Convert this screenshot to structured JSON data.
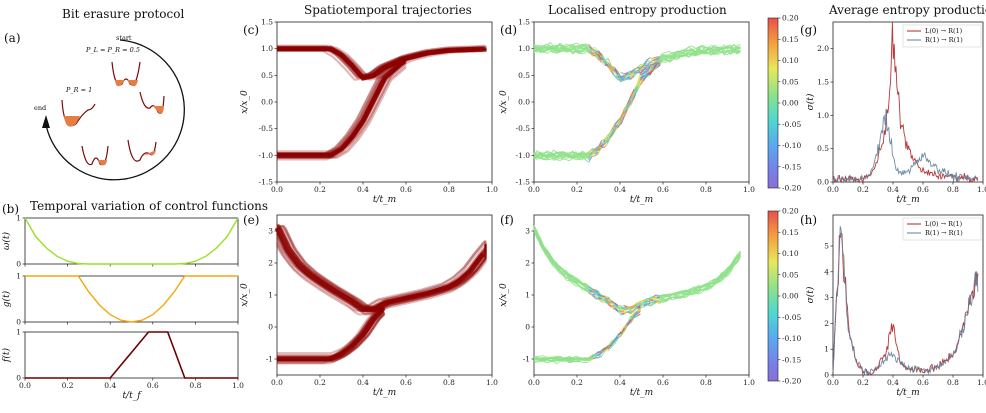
{
  "titles": {
    "a": "Bit erasure protocol",
    "b": "Temporal variation of control functions",
    "c": "Spatiotemporal trajectories",
    "d": "Localised entropy production",
    "g": "Average entropy production"
  },
  "panel_labels": [
    "(a)",
    "(b)",
    "(c)",
    "(d)",
    "(e)",
    "(f)",
    "(g)",
    "(h)"
  ],
  "protocol": {
    "start": "start",
    "start_prob": "P_L = P_R = 0.5",
    "end": "end",
    "end_prob": "P_R = 1"
  },
  "axis_labels": {
    "x_tf": "t/t_f",
    "x_tm": "t/t_m",
    "y_x": "x/x_0",
    "y_omega": "ω(t)",
    "y_g": "g(t)",
    "y_f": "f(t)",
    "y_sigma": "σ(t)"
  },
  "colors": {
    "omega": "#9be024",
    "g": "#f5a70c",
    "f": "#6b0000",
    "traj": "#8b0000",
    "red": "#b02121",
    "blue": "#5f7f9a"
  },
  "chart_data": [
    {
      "id": "b-omega",
      "type": "line",
      "title": "Temporal variation of control functions",
      "xlabel": "t/t_f",
      "ylabel": "ω(t)",
      "xlim": [
        0,
        1
      ],
      "ylim": [
        0,
        1
      ],
      "xticks": [
        "0.0",
        "0.2",
        "0.4",
        "0.6",
        "0.8",
        "1.0"
      ],
      "yticks": [
        "0",
        "1"
      ],
      "x": [
        0,
        0.05,
        0.1,
        0.15,
        0.2,
        0.25,
        0.3,
        0.7,
        0.75,
        0.8,
        0.85,
        0.9,
        0.95,
        1.0
      ],
      "y": [
        1,
        0.6,
        0.35,
        0.17,
        0.06,
        0.01,
        0,
        0,
        0.01,
        0.06,
        0.17,
        0.35,
        0.6,
        1
      ]
    },
    {
      "id": "b-g",
      "type": "line",
      "xlabel": "t/t_f",
      "ylabel": "g(t)",
      "xlim": [
        0,
        1
      ],
      "ylim": [
        0,
        1
      ],
      "xticks": [
        "0.0",
        "0.2",
        "0.4",
        "0.6",
        "0.8",
        "1.0"
      ],
      "yticks": [
        "0",
        "1"
      ],
      "x": [
        0,
        0.25,
        0.3,
        0.35,
        0.4,
        0.45,
        0.5,
        0.55,
        0.6,
        0.65,
        0.7,
        0.75,
        1.0
      ],
      "y": [
        1,
        1,
        0.65,
        0.37,
        0.16,
        0.04,
        0,
        0.04,
        0.16,
        0.37,
        0.65,
        1,
        1
      ]
    },
    {
      "id": "b-f",
      "type": "line",
      "xlabel": "t/t_f",
      "ylabel": "f(t)",
      "xlim": [
        0,
        1
      ],
      "ylim": [
        0,
        1
      ],
      "xticks": [
        "0.0",
        "0.2",
        "0.4",
        "0.6",
        "0.8",
        "1.0"
      ],
      "yticks": [
        "0",
        "1"
      ],
      "x": [
        0,
        0.4,
        0.58,
        0.67,
        0.75,
        1.0
      ],
      "y": [
        0,
        0,
        1,
        1,
        0,
        0
      ]
    },
    {
      "id": "c",
      "type": "line",
      "title": "Spatiotemporal trajectories",
      "xlabel": "t/t_m",
      "ylabel": "x/x_0",
      "xlim": [
        0,
        1
      ],
      "ylim": [
        -1.5,
        1.5
      ],
      "xticks": [
        "0.0",
        "0.2",
        "0.4",
        "0.6",
        "0.8",
        "1.0"
      ],
      "yticks": [
        "-1.5",
        "-1.0",
        "-0.5",
        "0.0",
        "0.5",
        "1.0",
        "1.5"
      ],
      "series": [
        {
          "name": "upper",
          "x": [
            0,
            0.25,
            0.3,
            0.35,
            0.4,
            0.45,
            0.5,
            0.6,
            0.7,
            0.8,
            1.0
          ],
          "y": [
            1.0,
            1.0,
            0.88,
            0.68,
            0.45,
            0.5,
            0.65,
            0.82,
            0.92,
            0.97,
            1.0
          ]
        },
        {
          "name": "lower",
          "x": [
            0,
            0.25,
            0.3,
            0.35,
            0.4,
            0.45,
            0.5,
            0.6
          ],
          "y": [
            -1.0,
            -1.0,
            -0.88,
            -0.65,
            -0.35,
            0.05,
            0.45,
            0.8
          ]
        }
      ]
    },
    {
      "id": "e",
      "type": "line",
      "xlabel": "t/t_m",
      "ylabel": "x/x_0",
      "xlim": [
        0,
        1
      ],
      "ylim": [
        -1.5,
        3.5
      ],
      "xticks": [
        "0.0",
        "0.2",
        "0.4",
        "0.6",
        "0.8",
        "1.0"
      ],
      "yticks": [
        "-1",
        "0",
        "1",
        "2",
        "3"
      ],
      "series": [
        {
          "name": "upper",
          "x": [
            0,
            0.05,
            0.1,
            0.15,
            0.2,
            0.25,
            0.3,
            0.35,
            0.4,
            0.45,
            0.5,
            0.6,
            0.7,
            0.8,
            0.85,
            0.9,
            0.95,
            1.0
          ],
          "y": [
            3.1,
            2.4,
            1.95,
            1.65,
            1.42,
            1.2,
            1.0,
            0.8,
            0.55,
            0.55,
            0.75,
            0.9,
            1.05,
            1.25,
            1.45,
            1.75,
            2.2,
            2.6
          ]
        },
        {
          "name": "lower",
          "x": [
            0,
            0.25,
            0.3,
            0.35,
            0.4,
            0.45,
            0.5
          ],
          "y": [
            -1.0,
            -1.0,
            -0.85,
            -0.6,
            -0.25,
            0.25,
            0.6
          ]
        }
      ]
    },
    {
      "id": "d",
      "type": "line",
      "title": "Localised entropy production",
      "xlabel": "t/t_m",
      "ylabel": "x/x_0",
      "xlim": [
        0,
        1
      ],
      "ylim": [
        -1.5,
        1.5
      ],
      "xticks": [
        "0.0",
        "0.2",
        "0.4",
        "0.6",
        "0.8",
        "1.0"
      ],
      "yticks": [
        "-1.5",
        "-1.0",
        "-0.5",
        "0.0",
        "0.5",
        "1.0",
        "1.5"
      ],
      "colorbar": {
        "min": -0.2,
        "max": 0.2,
        "ticks": [
          "0.20",
          "0.15",
          "0.10",
          "0.05",
          "0.00",
          "-0.05",
          "-0.10",
          "-0.15",
          "-0.20"
        ]
      }
    },
    {
      "id": "f",
      "type": "line",
      "xlabel": "t/t_m",
      "ylabel": "x/x_0",
      "xlim": [
        0,
        1
      ],
      "ylim": [
        -1.5,
        3.5
      ],
      "xticks": [
        "0.0",
        "0.2",
        "0.4",
        "0.6",
        "0.8",
        "1.0"
      ],
      "yticks": [
        "-1",
        "0",
        "1",
        "2",
        "3"
      ],
      "colorbar": {
        "min": -0.2,
        "max": 0.2,
        "ticks": [
          "0.20",
          "0.15",
          "0.10",
          "0.05",
          "0.00",
          "-0.05",
          "-0.10",
          "-0.15",
          "-0.20"
        ]
      }
    },
    {
      "id": "g",
      "type": "line",
      "title": "Average entropy production",
      "xlabel": "t/t_m",
      "ylabel": "σ(t)",
      "xlim": [
        0,
        1
      ],
      "ylim": [
        0,
        2.4
      ],
      "xticks": [
        "0.0",
        "0.2",
        "0.4",
        "0.6",
        "0.8",
        "1.0"
      ],
      "yticks": [
        "0.0",
        "0.5",
        "1.0",
        "1.5",
        "2.0"
      ],
      "legend": [
        "L(0) → R(1)",
        "R(1) → R(1)"
      ],
      "series": [
        {
          "name": "L(0) → R(1)",
          "x": [
            0,
            0.1,
            0.2,
            0.25,
            0.3,
            0.35,
            0.38,
            0.4,
            0.42,
            0.45,
            0.5,
            0.55,
            0.6,
            0.7,
            0.8,
            0.9,
            1.0
          ],
          "y": [
            0.05,
            0.04,
            0.05,
            0.1,
            0.35,
            0.8,
            1.4,
            2.3,
            1.6,
            0.9,
            0.5,
            0.3,
            0.15,
            0.1,
            0.08,
            0.05,
            0.03
          ]
        },
        {
          "name": "R(1) → R(1)",
          "x": [
            0,
            0.1,
            0.2,
            0.25,
            0.3,
            0.35,
            0.38,
            0.4,
            0.42,
            0.45,
            0.5,
            0.55,
            0.6,
            0.7,
            0.8,
            0.9,
            1.0
          ],
          "y": [
            0.03,
            0.04,
            0.05,
            0.1,
            0.5,
            1.0,
            0.7,
            0.35,
            0.2,
            0.12,
            0.15,
            0.3,
            0.4,
            0.2,
            0.08,
            0.05,
            0.03
          ]
        }
      ]
    },
    {
      "id": "h",
      "type": "line",
      "xlabel": "t/t_m",
      "ylabel": "σ(t)",
      "xlim": [
        0,
        1
      ],
      "ylim": [
        0,
        6.2
      ],
      "xticks": [
        "0.0",
        "0.2",
        "0.4",
        "0.6",
        "0.8",
        "1.0"
      ],
      "yticks": [
        "0",
        "1",
        "2",
        "3",
        "4",
        "5"
      ],
      "legend": [
        "L(0) → R(1)",
        "R(1) → R(1)"
      ],
      "series": [
        {
          "name": "L(0) → R(1)",
          "x": [
            0,
            0.02,
            0.05,
            0.08,
            0.1,
            0.15,
            0.2,
            0.25,
            0.3,
            0.35,
            0.38,
            0.4,
            0.42,
            0.45,
            0.5,
            0.6,
            0.7,
            0.8,
            0.85,
            0.9,
            0.93,
            0.96,
            1.0
          ],
          "y": [
            0.1,
            2.5,
            5.8,
            4.0,
            2.0,
            0.6,
            0.15,
            0.1,
            0.3,
            0.8,
            1.6,
            2.0,
            1.3,
            0.5,
            0.25,
            0.2,
            0.3,
            0.8,
            1.5,
            2.5,
            3.2,
            3.8,
            2.8
          ]
        },
        {
          "name": "R(1) → R(1)",
          "x": [
            0,
            0.02,
            0.05,
            0.08,
            0.1,
            0.15,
            0.2,
            0.25,
            0.3,
            0.35,
            0.38,
            0.4,
            0.42,
            0.45,
            0.5,
            0.6,
            0.7,
            0.8,
            0.85,
            0.9,
            0.93,
            0.96,
            1.0
          ],
          "y": [
            0.1,
            2.5,
            5.6,
            4.0,
            2.0,
            0.6,
            0.15,
            0.1,
            0.3,
            0.7,
            0.8,
            0.7,
            0.6,
            0.45,
            0.25,
            0.2,
            0.3,
            0.8,
            1.5,
            2.5,
            3.2,
            3.7,
            2.8
          ]
        }
      ]
    }
  ]
}
